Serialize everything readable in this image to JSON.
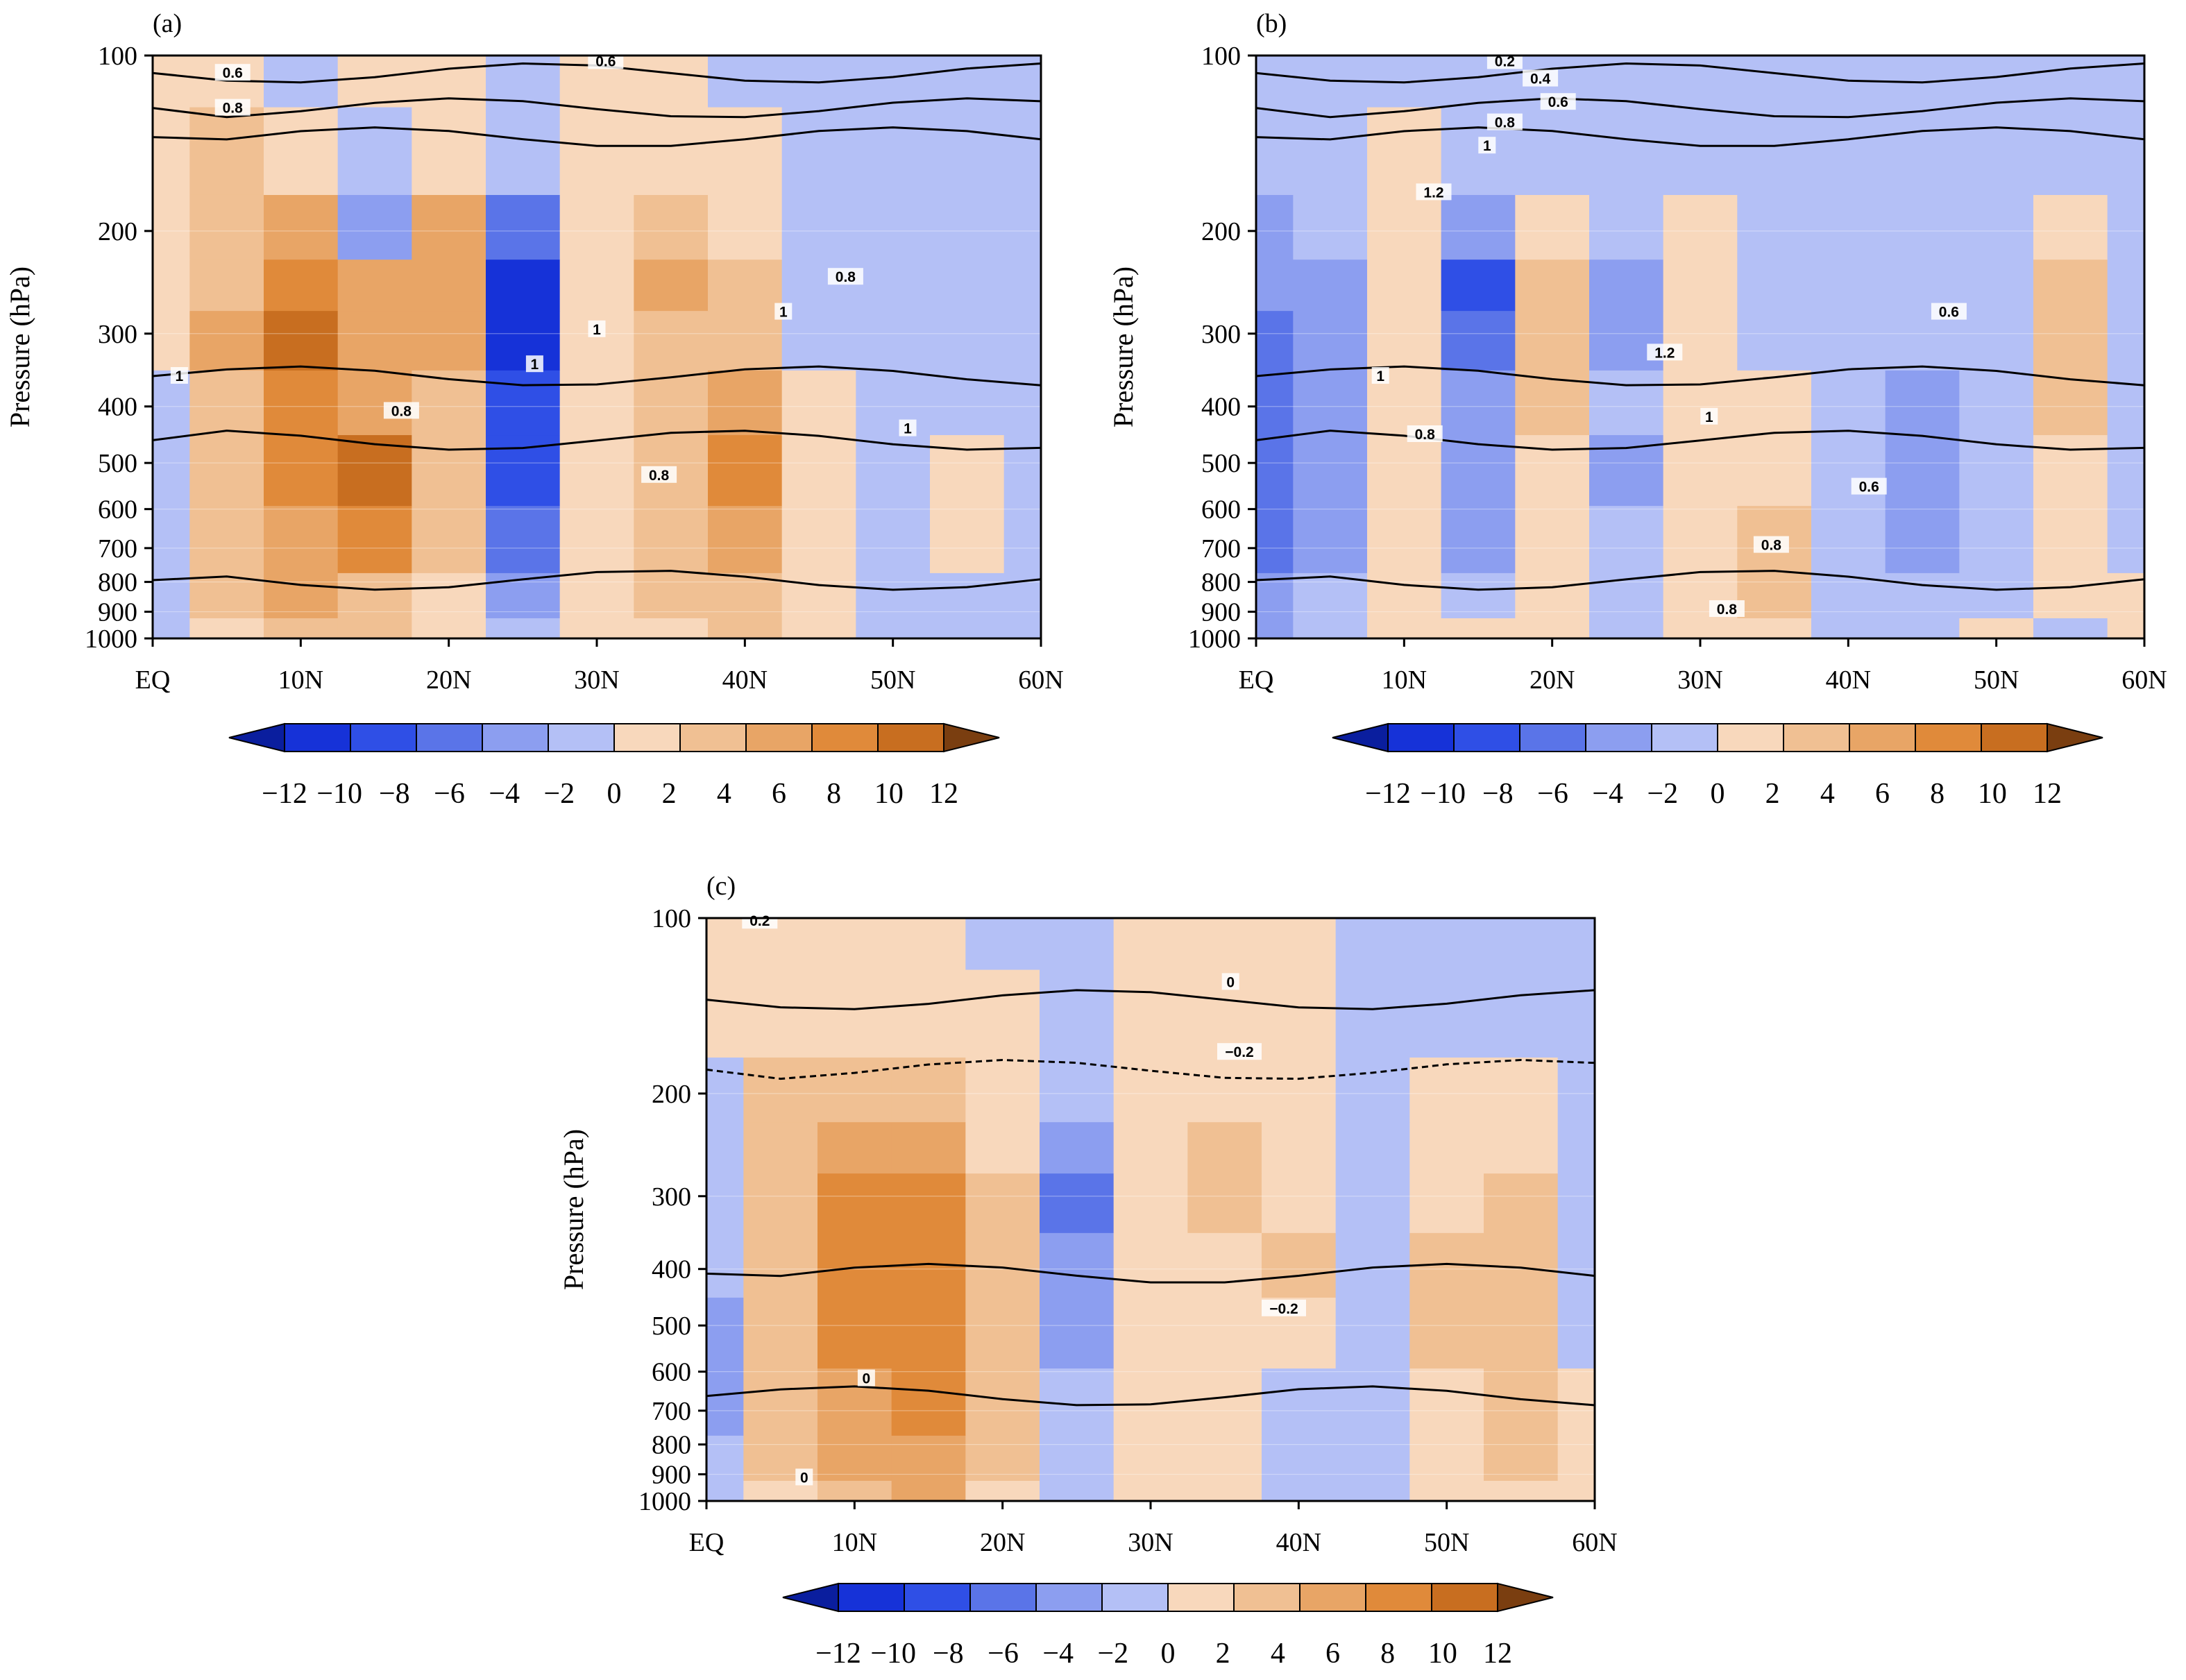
{
  "figure": {
    "colorbar": {
      "levels": [
        "−12",
        "−10",
        "−8",
        "−6",
        "−4",
        "−2",
        "0",
        "2",
        "4",
        "6",
        "8",
        "10",
        "12"
      ],
      "colors": [
        "#0a1e9e",
        "#1632d8",
        "#2f4fe6",
        "#5a74e8",
        "#8c9ef0",
        "#b4c0f6",
        "#f8d8bc",
        "#f0c093",
        "#e8a566",
        "#e08a3a",
        "#c86e20",
        "#a55a1c",
        "#7a3e10"
      ]
    }
  },
  "chart_data": [
    {
      "type": "heatmap",
      "panel_label": "(a)",
      "xlabel": "",
      "ylabel": "Pressure (hPa)",
      "x_ticks": [
        "EQ",
        "10N",
        "20N",
        "30N",
        "40N",
        "50N",
        "60N"
      ],
      "y_ticks": [
        "100",
        "200",
        "300",
        "400",
        "500",
        "600",
        "700",
        "800",
        "900",
        "1000"
      ],
      "x_range_deg": [
        0,
        60
      ],
      "y_range_hPa": [
        1000,
        100
      ],
      "y_scale": "log",
      "grid": false,
      "x_lat": [
        0,
        5,
        10,
        15,
        20,
        25,
        30,
        35,
        40,
        45,
        50,
        55,
        60
      ],
      "p_levels": [
        1000,
        850,
        700,
        500,
        400,
        300,
        250,
        200,
        150,
        100
      ],
      "shaded_values": [
        [
          -1,
          1,
          2,
          2,
          1,
          -1,
          1,
          1,
          2,
          1,
          -1,
          -1,
          -1
        ],
        [
          -2,
          2,
          4,
          3,
          1,
          -4,
          1,
          2,
          3,
          1,
          -1,
          -1,
          -1
        ],
        [
          -2,
          3,
          5,
          7,
          2,
          -5,
          1,
          3,
          5,
          1,
          -1,
          1,
          -1
        ],
        [
          -1,
          3,
          6,
          8,
          3,
          -7,
          1,
          3,
          6,
          1,
          -2,
          1,
          -1
        ],
        [
          -1,
          3,
          7,
          5,
          3,
          -8,
          1,
          3,
          5,
          1,
          -2,
          -1,
          -1
        ],
        [
          1,
          4,
          8,
          5,
          5,
          -10,
          1,
          3,
          3,
          -1,
          -2,
          -1,
          -1
        ],
        [
          1,
          3,
          6,
          4,
          5,
          -9,
          1,
          4,
          2,
          -2,
          -2,
          -1,
          -1
        ],
        [
          1,
          3,
          5,
          -4,
          4,
          -6,
          1,
          2,
          1,
          -1,
          -1,
          -1,
          -1
        ],
        [
          1,
          2,
          1,
          -2,
          1,
          -2,
          1,
          1,
          1,
          -1,
          -1,
          -1,
          -1
        ],
        [
          1,
          1,
          -1,
          1,
          1,
          -1,
          1,
          1,
          -1,
          -1,
          -1,
          -1,
          -1
        ]
      ],
      "contour_labels": [
        "0.6",
        "0.8",
        "1",
        "0.8",
        "0.6",
        "0.8",
        "1",
        "1",
        "0.8",
        "1",
        "1"
      ]
    },
    {
      "type": "heatmap",
      "panel_label": "(b)",
      "xlabel": "",
      "ylabel": "Pressure (hPa)",
      "x_ticks": [
        "EQ",
        "10N",
        "20N",
        "30N",
        "40N",
        "50N",
        "60N"
      ],
      "y_ticks": [
        "100",
        "200",
        "300",
        "400",
        "500",
        "600",
        "700",
        "800",
        "900",
        "1000"
      ],
      "x_range_deg": [
        0,
        60
      ],
      "y_range_hPa": [
        1000,
        100
      ],
      "y_scale": "log",
      "grid": false,
      "x_lat": [
        0,
        5,
        10,
        15,
        20,
        25,
        30,
        35,
        40,
        45,
        50,
        55,
        60
      ],
      "p_levels": [
        1000,
        850,
        700,
        500,
        400,
        300,
        250,
        200,
        150,
        100
      ],
      "shaded_values": [
        [
          -3,
          -1,
          1,
          1,
          1,
          -1,
          1,
          1,
          -1,
          -1,
          1,
          -1,
          1
        ],
        [
          -4,
          -1,
          1,
          -2,
          1,
          -2,
          1,
          2,
          -1,
          -2,
          -1,
          1,
          1
        ],
        [
          -5,
          -3,
          1,
          -3,
          1,
          -2,
          1,
          2,
          -1,
          -3,
          -1,
          1,
          -1
        ],
        [
          -5,
          -3,
          1,
          -3,
          1,
          -3,
          1,
          1,
          -1,
          -3,
          -1,
          1,
          -1
        ],
        [
          -6,
          -4,
          1,
          -4,
          2,
          -2,
          1,
          1,
          -1,
          -3,
          -1,
          2,
          -1
        ],
        [
          -6,
          -3,
          1,
          -6,
          2,
          -3,
          1,
          -1,
          -1,
          -2,
          -1,
          2,
          -1
        ],
        [
          -4,
          -3,
          1,
          -8,
          2,
          -3,
          1,
          -1,
          -1,
          -2,
          -1,
          2,
          -1
        ],
        [
          -3,
          -2,
          1,
          -4,
          1,
          -2,
          1,
          -1,
          -1,
          -1,
          -1,
          1,
          -1
        ],
        [
          -1,
          -1,
          1,
          -2,
          -1,
          -1,
          -1,
          -1,
          -1,
          -1,
          -1,
          -1,
          -1
        ],
        [
          -1,
          -1,
          -1,
          -1,
          -1,
          -1,
          -1,
          -1,
          -1,
          -1,
          -1,
          -1,
          -1
        ]
      ],
      "contour_labels": [
        "0.2",
        "0.4",
        "0.6",
        "0.8",
        "1",
        "1.2",
        "1.2",
        "1",
        "1",
        "0.8",
        "0.6",
        "0.6",
        "0.8",
        "0.8"
      ]
    },
    {
      "type": "heatmap",
      "panel_label": "(c)",
      "xlabel": "",
      "ylabel": "Pressure (hPa)",
      "x_ticks": [
        "EQ",
        "10N",
        "20N",
        "30N",
        "40N",
        "50N",
        "60N"
      ],
      "y_ticks": [
        "100",
        "200",
        "300",
        "400",
        "500",
        "600",
        "700",
        "800",
        "900",
        "1000"
      ],
      "x_range_deg": [
        0,
        60
      ],
      "y_range_hPa": [
        1000,
        100
      ],
      "y_scale": "log",
      "grid": false,
      "x_lat": [
        0,
        5,
        10,
        15,
        20,
        25,
        30,
        35,
        40,
        45,
        50,
        55,
        60
      ],
      "p_levels": [
        1000,
        850,
        700,
        500,
        400,
        300,
        250,
        200,
        150,
        100
      ],
      "shaded_values": [
        [
          -1,
          1,
          3,
          4,
          1,
          -2,
          1,
          1,
          -1,
          -1,
          1,
          1,
          1
        ],
        [
          -2,
          2,
          4,
          5,
          2,
          -2,
          1,
          1,
          -2,
          -1,
          1,
          2,
          1
        ],
        [
          -3,
          2,
          5,
          6,
          2,
          -2,
          1,
          1,
          -1,
          -1,
          1,
          2,
          1
        ],
        [
          -3,
          2,
          6,
          6,
          2,
          -3,
          1,
          1,
          1,
          -1,
          2,
          2,
          -1
        ],
        [
          -2,
          3,
          6,
          6,
          2,
          -4,
          1,
          1,
          2,
          -1,
          2,
          3,
          -1
        ],
        [
          -2,
          3,
          6,
          6,
          2,
          -5,
          1,
          2,
          1,
          -1,
          1,
          2,
          -1
        ],
        [
          -1,
          2,
          4,
          4,
          1,
          -3,
          1,
          2,
          1,
          -1,
          1,
          1,
          -1
        ],
        [
          -1,
          2,
          3,
          3,
          1,
          -2,
          1,
          1,
          1,
          -1,
          1,
          1,
          -1
        ],
        [
          1,
          1,
          1,
          1,
          1,
          -1,
          1,
          1,
          1,
          -1,
          -1,
          -1,
          -1
        ],
        [
          1,
          1,
          1,
          1,
          -1,
          -1,
          1,
          1,
          1,
          -1,
          -1,
          -1,
          -1
        ]
      ],
      "contour_labels": [
        "0.2",
        "0",
        "−0.2",
        "−0.2",
        "0",
        "0"
      ]
    }
  ]
}
